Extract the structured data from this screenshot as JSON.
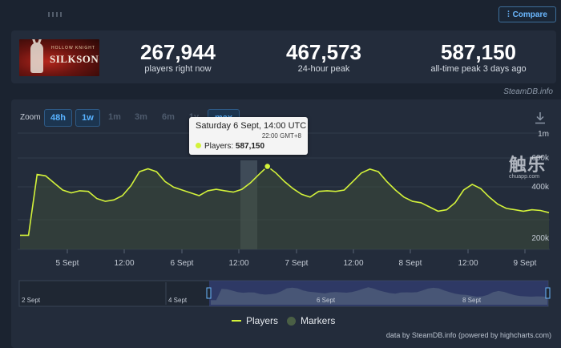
{
  "header": {
    "compare_label": "Compare"
  },
  "game": {
    "logo_text": "SILKSONG",
    "logo_subtitle": "HOLLOW KNIGHT"
  },
  "stats": [
    {
      "value": "267,944",
      "label": "players right now"
    },
    {
      "value": "467,573",
      "label": "24-hour peak"
    },
    {
      "value": "587,150",
      "label": "all-time peak 3 days ago"
    }
  ],
  "source_credit": "SteamDB.info",
  "zoom": {
    "label": "Zoom",
    "buttons": [
      {
        "label": "48h",
        "state": "enabled"
      },
      {
        "label": "1w",
        "state": "enabled"
      },
      {
        "label": "1m",
        "state": "disabled"
      },
      {
        "label": "3m",
        "state": "disabled"
      },
      {
        "label": "6m",
        "state": "disabled"
      },
      {
        "label": "1y",
        "state": "disabled"
      },
      {
        "label": "max",
        "state": "selected"
      }
    ]
  },
  "tooltip": {
    "date": "Saturday 6 Sept, 14:00 UTC",
    "local": "22:00 GMT+8",
    "series_label": "Players:",
    "value_text": "587,150"
  },
  "watermark": {
    "glyph": "触乐",
    "url": "chuapp.com"
  },
  "legend": {
    "players": "Players",
    "markers": "Markers"
  },
  "footer_credit": "data by SteamDB.info (powered by highcharts.com)",
  "chart_data": {
    "type": "area",
    "series": [
      {
        "name": "Players",
        "color": "#d3f23a",
        "values": [
          100000,
          100000,
          530000,
          520000,
          470000,
          420000,
          400000,
          415000,
          410000,
          360000,
          340000,
          350000,
          380000,
          450000,
          550000,
          570000,
          550000,
          480000,
          440000,
          420000,
          400000,
          380000,
          415000,
          425000,
          415000,
          405000,
          425000,
          470000,
          530000,
          587150,
          540000,
          480000,
          430000,
          390000,
          370000,
          410000,
          415000,
          410000,
          420000,
          480000,
          540000,
          568000,
          550000,
          480000,
          420000,
          370000,
          340000,
          330000,
          300000,
          270000,
          280000,
          330000,
          420000,
          460000,
          430000,
          370000,
          320000,
          290000,
          280000,
          270000,
          280000,
          275000,
          260000
        ]
      }
    ],
    "y_ticks": [
      "200k",
      "400k",
      "600k",
      "1m"
    ],
    "x_ticks": [
      "5 Sept",
      "12:00",
      "6 Sept",
      "12:00",
      "7 Sept",
      "12:00",
      "8 Sept",
      "12:00",
      "9 Sept"
    ],
    "navigator_labels": [
      "2 Sept",
      "4 Sept",
      "6 Sept",
      "8 Sept"
    ],
    "ylim": [
      0,
      800000
    ],
    "grid": true,
    "highlight_value": 587150
  }
}
